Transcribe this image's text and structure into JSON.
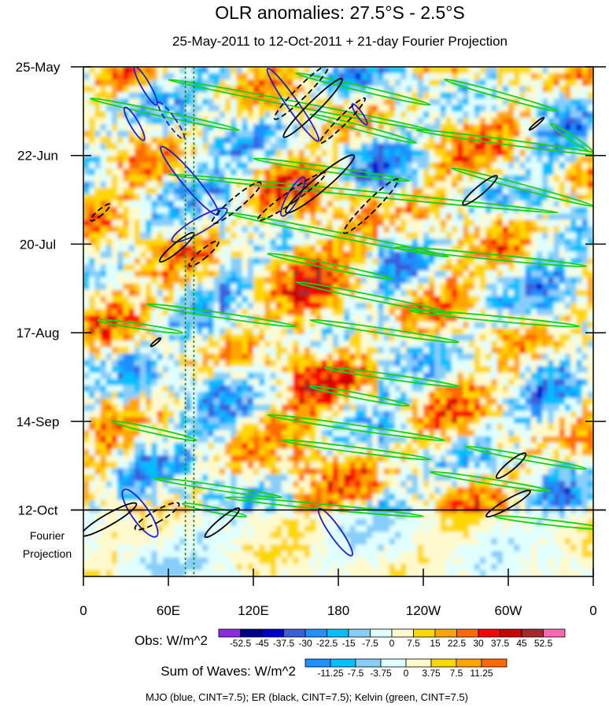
{
  "chart_data": {
    "type": "heatmap",
    "title": "OLR anomalies: 27.5°S - 2.5°S",
    "subtitle": "25-May-2011 to 12-Oct-2011 + 21-day Fourier Projection",
    "x_ticks": [
      "0",
      "60E",
      "120E",
      "180",
      "120W",
      "60W",
      "0"
    ],
    "x_tick_values": [
      0,
      60,
      120,
      180,
      240,
      300,
      360
    ],
    "xlim": [
      0,
      360
    ],
    "y_ticks": [
      "25-May",
      "22-Jun",
      "20-Jul",
      "17-Aug",
      "14-Sep",
      "12-Oct"
    ],
    "y_tick_days": [
      0,
      28,
      56,
      84,
      112,
      140
    ],
    "ylim_days": [
      0,
      161
    ],
    "observation_end_day": 140,
    "projection_label_line1": "Fourier",
    "projection_label_line2": "Projection",
    "mjo_dashed_lon": [
      72,
      78
    ],
    "obs_scale": {
      "label": "Obs: W/m^2",
      "levels": [
        "-52.5",
        "-45",
        "-37.5",
        "-30",
        "-22.5",
        "-15",
        "-7.5",
        "0",
        "7.5",
        "15",
        "22.5",
        "30",
        "37.5",
        "45",
        "52.5"
      ],
      "colors": [
        "#8a2be2",
        "#00008b",
        "#0000cd",
        "#3a5fd9",
        "#1e90ff",
        "#00bfff",
        "#87cefa",
        "#e0ffff",
        "#fffacd",
        "#ffd700",
        "#ffa500",
        "#ff6a00",
        "#ff0000",
        "#cd0000",
        "#a52a2a",
        "#ff69b4"
      ]
    },
    "waves_scale": {
      "label": "Sum of Waves: W/m^2",
      "levels": [
        "-11.25",
        "-7.5",
        "-3.75",
        "0",
        "3.75",
        "7.5",
        "11.25"
      ],
      "colors": [
        "#1e90ff",
        "#00bfff",
        "#87cefa",
        "#e0ffff",
        "#fffacd",
        "#ffd700",
        "#ffa500",
        "#ff6a00"
      ]
    },
    "footer": "MJO (blue, CINT=7.5); ER (black, CINT=7.5); Kelvin (green, CINT=7.5)",
    "mjo_contours": [
      {
        "lon": 40,
        "day": 141,
        "rx": 6,
        "ry": 9,
        "rot": -35,
        "dash": false
      },
      {
        "lon": 82,
        "day": 50,
        "rx": 5,
        "ry": 10,
        "rot": 60,
        "dash": false
      },
      {
        "lon": 44,
        "day": 6,
        "rx": 3,
        "ry": 7,
        "rot": -30,
        "dash": false
      },
      {
        "lon": 36,
        "day": 18,
        "rx": 3,
        "ry": 6,
        "rot": -30,
        "dash": false
      },
      {
        "lon": 62,
        "day": 17,
        "rx": 3,
        "ry": 7,
        "rot": -35,
        "dash": true
      },
      {
        "lon": 75,
        "day": 36,
        "rx": 5,
        "ry": 14,
        "rot": -40,
        "dash": false
      },
      {
        "lon": 148,
        "day": 12,
        "rx": 4,
        "ry": 14,
        "rot": -35,
        "dash": false
      },
      {
        "lon": 148,
        "day": 41,
        "rx": 4,
        "ry": 7,
        "rot": 30,
        "dash": false
      },
      {
        "lon": 195,
        "day": 15,
        "rx": 2,
        "ry": 4,
        "rot": -35,
        "dash": false
      },
      {
        "lon": 178,
        "day": 147,
        "rx": 4,
        "ry": 9,
        "rot": -35,
        "dash": false
      }
    ],
    "er_contours": [
      {
        "lon": 162,
        "day": 13,
        "rx": 4,
        "ry": 13,
        "rot": 45,
        "dash": false
      },
      {
        "lon": 154,
        "day": 8,
        "rx": 4,
        "ry": 12,
        "rot": 45,
        "dash": true
      },
      {
        "lon": 183,
        "day": 17,
        "rx": 3,
        "ry": 10,
        "rot": 45,
        "dash": true
      },
      {
        "lon": 167,
        "day": 37,
        "rx": 5,
        "ry": 14,
        "rot": 50,
        "dash": false
      },
      {
        "lon": 147,
        "day": 41,
        "rx": 4,
        "ry": 13,
        "rot": 55,
        "dash": true
      },
      {
        "lon": 203,
        "day": 44,
        "rx": 4,
        "ry": 12,
        "rot": 45,
        "dash": true
      },
      {
        "lon": 108,
        "day": 43,
        "rx": 4,
        "ry": 10,
        "rot": 50,
        "dash": true
      },
      {
        "lon": 12,
        "day": 46,
        "rx": 2,
        "ry": 4,
        "rot": 50,
        "dash": true
      },
      {
        "lon": 66,
        "day": 57,
        "rx": 3,
        "ry": 7,
        "rot": 50,
        "dash": false
      },
      {
        "lon": 85,
        "day": 59,
        "rx": 3,
        "ry": 6,
        "rot": 50,
        "dash": true
      },
      {
        "lon": 280,
        "day": 39,
        "rx": 3,
        "ry": 7,
        "rot": 50,
        "dash": false
      },
      {
        "lon": 320,
        "day": 18,
        "rx": 1,
        "ry": 3,
        "rot": 50,
        "dash": false
      },
      {
        "lon": 52,
        "day": 142,
        "rx": 4,
        "ry": 8,
        "rot": 60,
        "dash": true
      },
      {
        "lon": 18,
        "day": 143,
        "rx": 4,
        "ry": 10,
        "rot": 60,
        "dash": false
      },
      {
        "lon": 98,
        "day": 144,
        "rx": 3,
        "ry": 7,
        "rot": 50,
        "dash": false
      },
      {
        "lon": 300,
        "day": 138,
        "rx": 3,
        "ry": 8,
        "rot": 60,
        "dash": false
      },
      {
        "lon": 302,
        "day": 126,
        "rx": 3,
        "ry": 6,
        "rot": 50,
        "dash": false
      },
      {
        "lon": 51,
        "day": 87,
        "rx": 1,
        "ry": 2,
        "rot": 50,
        "dash": false
      }
    ],
    "kelvin_bands": [
      {
        "lon1": 150,
        "day1": 2,
        "lon2": 245,
        "day2": 12
      },
      {
        "lon1": 255,
        "day1": 4,
        "lon2": 335,
        "day2": 14
      },
      {
        "lon1": 5,
        "day1": 10,
        "lon2": 110,
        "day2": 20
      },
      {
        "lon1": 60,
        "day1": 4,
        "lon2": 245,
        "day2": 20
      },
      {
        "lon1": 160,
        "day1": 15,
        "lon2": 235,
        "day2": 24
      },
      {
        "lon1": 235,
        "day1": 20,
        "lon2": 370,
        "day2": 28
      },
      {
        "lon1": 330,
        "day1": 18,
        "lon2": 360,
        "day2": 27
      },
      {
        "lon1": 120,
        "day1": 29,
        "lon2": 230,
        "day2": 36
      },
      {
        "lon1": 260,
        "day1": 32,
        "lon2": 360,
        "day2": 44
      },
      {
        "lon1": 60,
        "day1": 34,
        "lon2": 335,
        "day2": 46
      },
      {
        "lon1": 100,
        "day1": 46,
        "lon2": 258,
        "day2": 60
      },
      {
        "lon1": 130,
        "day1": 59,
        "lon2": 218,
        "day2": 67
      },
      {
        "lon1": 220,
        "day1": 57,
        "lon2": 355,
        "day2": 63
      },
      {
        "lon1": 45,
        "day1": 75,
        "lon2": 150,
        "day2": 82
      },
      {
        "lon1": 150,
        "day1": 68,
        "lon2": 260,
        "day2": 78
      },
      {
        "lon1": 230,
        "day1": 77,
        "lon2": 350,
        "day2": 82
      },
      {
        "lon1": 160,
        "day1": 80,
        "lon2": 265,
        "day2": 87
      },
      {
        "lon1": 10,
        "day1": 80,
        "lon2": 70,
        "day2": 84
      },
      {
        "lon1": 170,
        "day1": 95,
        "lon2": 265,
        "day2": 101
      },
      {
        "lon1": 160,
        "day1": 101,
        "lon2": 230,
        "day2": 107
      },
      {
        "lon1": 130,
        "day1": 110,
        "lon2": 255,
        "day2": 118
      },
      {
        "lon1": 140,
        "day1": 118,
        "lon2": 245,
        "day2": 124
      },
      {
        "lon1": 20,
        "day1": 112,
        "lon2": 80,
        "day2": 118
      },
      {
        "lon1": 270,
        "day1": 120,
        "lon2": 355,
        "day2": 127
      },
      {
        "lon1": 245,
        "day1": 128,
        "lon2": 330,
        "day2": 134
      },
      {
        "lon1": 50,
        "day1": 130,
        "lon2": 140,
        "day2": 136
      },
      {
        "lon1": 100,
        "day1": 136,
        "lon2": 240,
        "day2": 142
      },
      {
        "lon1": 290,
        "day1": 142,
        "lon2": 370,
        "day2": 146
      },
      {
        "lon1": 70,
        "day1": 138,
        "lon2": 115,
        "day2": 142
      }
    ]
  }
}
